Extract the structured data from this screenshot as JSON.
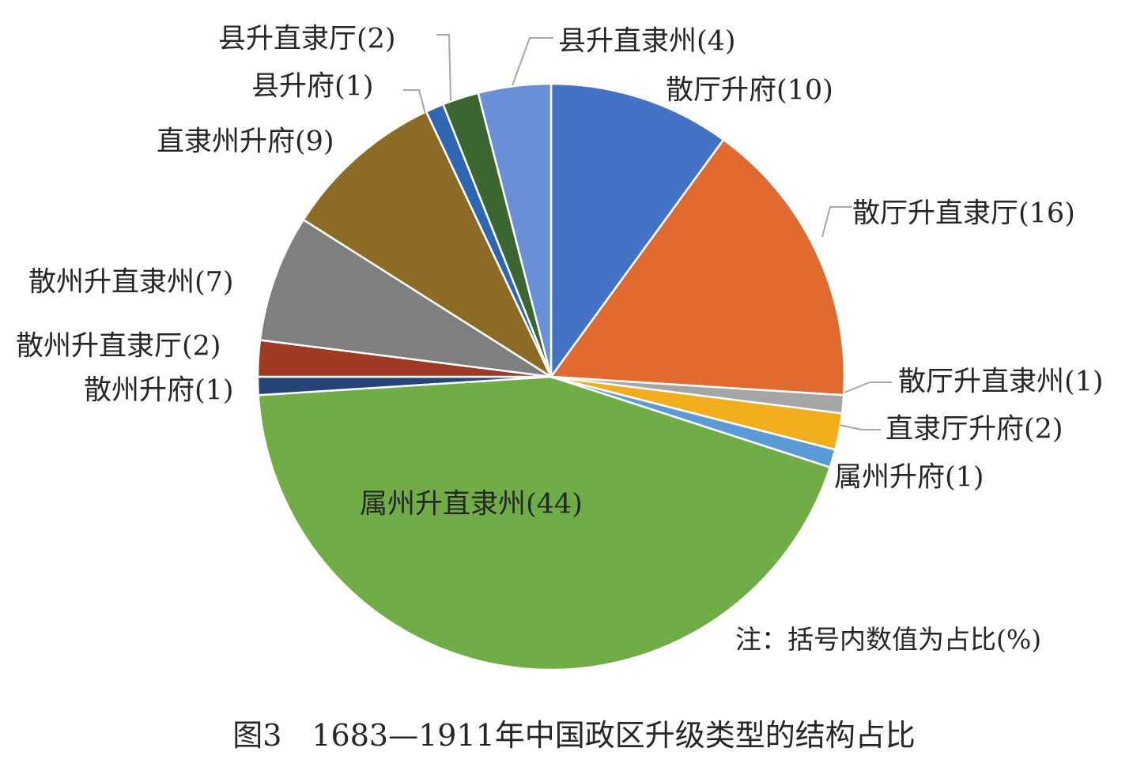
{
  "chart_data": {
    "type": "pie",
    "note": "注：括号内数值为占比(%)",
    "caption": "图3　1683—1911年中国政区升级类型的结构占比",
    "slices": [
      {
        "label": "散厅升府(10)",
        "value": 10,
        "color": "#4472c4"
      },
      {
        "label": "散厅升直隶厅(16)",
        "value": 16,
        "color": "#e06a2f"
      },
      {
        "label": "散厅升直隶州(1)",
        "value": 1,
        "color": "#a5a5a5"
      },
      {
        "label": "直隶厅升府(2)",
        "value": 2,
        "color": "#f2ad1c"
      },
      {
        "label": "属州升府(1)",
        "value": 1,
        "color": "#5b9bd5"
      },
      {
        "label": "属州升直隶州(44)",
        "value": 44,
        "color": "#70ad47"
      },
      {
        "label": "散州升府(1)",
        "value": 1,
        "color": "#264478"
      },
      {
        "label": "散州升直隶厅(2)",
        "value": 2,
        "color": "#9e3b22"
      },
      {
        "label": "散州升直隶州(7)",
        "value": 7,
        "color": "#7f7f7f"
      },
      {
        "label": "直隶州升府(9)",
        "value": 9,
        "color": "#8c6c25"
      },
      {
        "label": "县升府(1)",
        "value": 1,
        "color": "#2e66b2"
      },
      {
        "label": "县升直隶厅(2)",
        "value": 2,
        "color": "#3b6632"
      },
      {
        "label": "县升直隶州(4)",
        "value": 4,
        "color": "#6a8fd6"
      }
    ]
  }
}
